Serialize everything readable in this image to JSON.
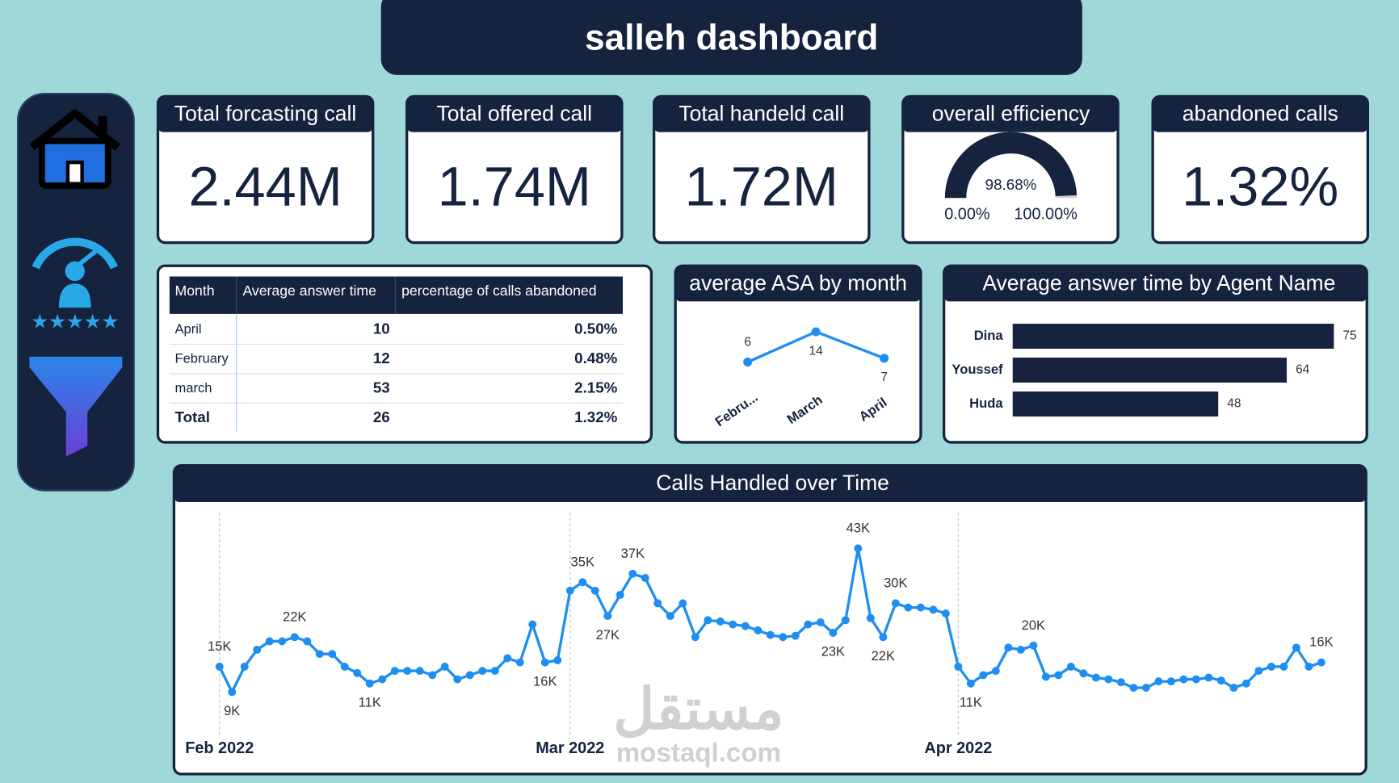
{
  "header": {
    "title": "salleh dashboard"
  },
  "kpis": [
    {
      "title": "Total forcasting call",
      "value": "2.44M"
    },
    {
      "title": "Total offered call",
      "value": "1.74M"
    },
    {
      "title": "Total handeld call",
      "value": "1.72M"
    },
    {
      "title": "abandoned calls",
      "value": "1.32%"
    }
  ],
  "table": {
    "columns": [
      "Month",
      "Average answer time",
      "percentage of calls abandoned"
    ],
    "rows": [
      [
        "April",
        10,
        "0.50%"
      ],
      [
        "February",
        12,
        "0.48%"
      ],
      [
        "march",
        53,
        "2.15%"
      ]
    ],
    "total": [
      "Total",
      26,
      "1.32%"
    ]
  },
  "chart_data": [
    {
      "type": "gauge",
      "title": "overall efficiency",
      "value": 98.68,
      "value_label": "98.68%",
      "range": [
        {
          "value": 0,
          "label": "0.00%"
        },
        {
          "value": 100,
          "label": "100.00%"
        }
      ],
      "color": "#15233f"
    },
    {
      "type": "line",
      "title": "average ASA by month",
      "categories": [
        "Febru...",
        "March",
        "April"
      ],
      "values": [
        6,
        14,
        7
      ],
      "color": "#1f8ef1"
    },
    {
      "type": "barh",
      "title": "Average answer time by Agent Name",
      "categories": [
        "Dina",
        "Youssef",
        "Huda"
      ],
      "values": [
        75,
        64,
        48
      ],
      "color": "#15233f"
    },
    {
      "type": "line",
      "title": "Calls Handled over Time",
      "color": "#1f8ef1",
      "grid": true,
      "categories": [
        "Feb 2022",
        null,
        null,
        null,
        null,
        null,
        null,
        null,
        null,
        null,
        null,
        null,
        null,
        null,
        null,
        null,
        null,
        null,
        null,
        null,
        null,
        null,
        null,
        null,
        null,
        null,
        null,
        null,
        "Mar 2022",
        null,
        null,
        null,
        null,
        null,
        null,
        null,
        null,
        null,
        null,
        null,
        null,
        null,
        null,
        null,
        null,
        null,
        null,
        null,
        null,
        null,
        null,
        null,
        null,
        null,
        null,
        null,
        null,
        null,
        null,
        "Apr 2022",
        null,
        null,
        null,
        null,
        null,
        null,
        null,
        null,
        null,
        null,
        null,
        null,
        null,
        null,
        null,
        null,
        null,
        null,
        null,
        null,
        null,
        null,
        null,
        null,
        null,
        null,
        null,
        null,
        null
      ],
      "values": [
        15000,
        9000,
        15000,
        19000,
        21000,
        21000,
        22000,
        21000,
        18000,
        18000,
        15000,
        13500,
        11000,
        12000,
        14000,
        14000,
        14000,
        13000,
        15000,
        12000,
        13000,
        14000,
        14000,
        17000,
        16000,
        25000,
        16000,
        16500,
        33000,
        35000,
        33000,
        27000,
        32000,
        37000,
        36000,
        30000,
        27000,
        30000,
        22000,
        26000,
        25700,
        25000,
        24600,
        23600,
        22500,
        22000,
        22300,
        25000,
        25500,
        23000,
        26000,
        43000,
        26500,
        22000,
        30000,
        29000,
        29000,
        28500,
        27600,
        15000,
        11000,
        13000,
        14000,
        19500,
        19000,
        20000,
        12600,
        13000,
        15000,
        13400,
        12400,
        12000,
        11300,
        10000,
        10000,
        11500,
        11500,
        12000,
        12000,
        12400,
        11700,
        10000,
        11000,
        14000,
        15000,
        15000,
        19500,
        15000,
        16000
      ],
      "value_labels": [
        "15K",
        "9K",
        null,
        null,
        null,
        null,
        "22K",
        null,
        null,
        null,
        null,
        null,
        "11K",
        null,
        null,
        null,
        null,
        null,
        null,
        null,
        null,
        null,
        null,
        null,
        null,
        null,
        "16K",
        null,
        null,
        "35K",
        null,
        "27K",
        null,
        "37K",
        null,
        null,
        null,
        null,
        null,
        null,
        null,
        null,
        null,
        null,
        null,
        null,
        null,
        null,
        null,
        "23K",
        null,
        "43K",
        null,
        "22K",
        "30K",
        null,
        null,
        null,
        null,
        null,
        "11K",
        null,
        null,
        null,
        null,
        "20K",
        null,
        null,
        null,
        null,
        null,
        null,
        null,
        null,
        null,
        null,
        null,
        null,
        null,
        null,
        null,
        null,
        null,
        null,
        null,
        null,
        null,
        null,
        "16K"
      ]
    }
  ],
  "watermark": {
    "arabic": "مستقل",
    "latin": "mostaql.com"
  }
}
